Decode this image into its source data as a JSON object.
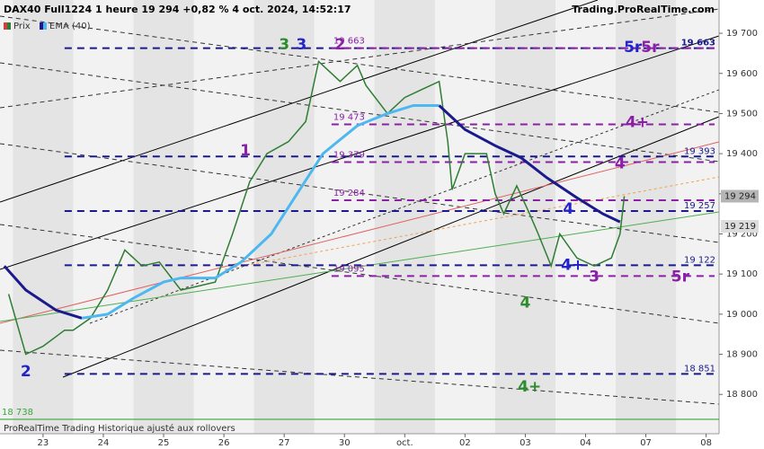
{
  "header": {
    "brand": "Trading.ProRealTime.com"
  },
  "footer": "ProRealTime Trading Historique ajusté aux rollovers",
  "chart_data": {
    "type": "line",
    "title": "DAX40 Full1224 1 heure 19 294 +0,82 % 4 oct. 2024, 14:52:17",
    "series": [
      {
        "name": "Prix",
        "color": "#2e7d32",
        "x": [
          2,
          6,
          10,
          15,
          17,
          21,
          25,
          29,
          33,
          37,
          42,
          46,
          50,
          54,
          58,
          62,
          67,
          71,
          74,
          77,
          79,
          83,
          85,
          90,
          94,
          98,
          102,
          104,
          105,
          108,
          113,
          115,
          117,
          120,
          123,
          125,
          128,
          130,
          134,
          138,
          142,
          144,
          145
        ],
        "values": [
          19050,
          18900,
          18920,
          18960,
          18960,
          18990,
          19060,
          19160,
          19120,
          19130,
          19060,
          19070,
          19080,
          19200,
          19330,
          19400,
          19430,
          19480,
          19630,
          19600,
          19580,
          19620,
          19570,
          19500,
          19540,
          19560,
          19580,
          19430,
          19310,
          19400,
          19400,
          19300,
          19250,
          19320,
          19250,
          19200,
          19120,
          19200,
          19140,
          19120,
          19140,
          19200,
          19294
        ]
      },
      {
        "name": "EMA (40)",
        "color": "#4db8f0",
        "falling_color": "#1a1a8c",
        "x": [
          1,
          6,
          13,
          19,
          25,
          31,
          38,
          42,
          50,
          56,
          63,
          69,
          75,
          83,
          90,
          96,
          102,
          108,
          115,
          121,
          127,
          134,
          140,
          144
        ],
        "values": [
          19120,
          19060,
          19010,
          18990,
          19000,
          19040,
          19080,
          19090,
          19090,
          19130,
          19200,
          19300,
          19400,
          19470,
          19500,
          19520,
          19520,
          19460,
          19420,
          19390,
          19340,
          19290,
          19250,
          19230
        ]
      }
    ],
    "xlim": [
      0,
      167
    ],
    "xticks": [
      {
        "value": 10,
        "label": "23"
      },
      {
        "value": 24,
        "label": "24"
      },
      {
        "value": 38,
        "label": "25"
      },
      {
        "value": 52,
        "label": "26"
      },
      {
        "value": 66,
        "label": "27"
      },
      {
        "value": 80,
        "label": "30"
      },
      {
        "value": 94,
        "label": "oct."
      },
      {
        "value": 108,
        "label": "02"
      },
      {
        "value": 122,
        "label": "03"
      },
      {
        "value": 136,
        "label": "04"
      },
      {
        "value": 150,
        "label": "07"
      },
      {
        "value": 164,
        "label": "08"
      }
    ],
    "ylim": [
      18702,
      19783
    ],
    "yticks": [
      {
        "value": 18800,
        "label": "18 800"
      },
      {
        "value": 18900,
        "label": "18 900"
      },
      {
        "value": 19000,
        "label": "19 000"
      },
      {
        "value": 19100,
        "label": "19 100"
      },
      {
        "value": 19200,
        "label": "19 200"
      },
      {
        "value": 19300,
        "label": "19 300"
      },
      {
        "value": 19400,
        "label": "19 400"
      },
      {
        "value": 19500,
        "label": "19 500"
      },
      {
        "value": 19600,
        "label": "19 600"
      },
      {
        "value": 19700,
        "label": "19 700"
      }
    ],
    "levels": [
      {
        "value": 19663,
        "label": "19 663",
        "color": "#1a1a8c",
        "start": 15,
        "label_side": "right"
      },
      {
        "value": 19393,
        "label": "19 393",
        "color": "#1a1a8c",
        "start": 15,
        "label_side": "right"
      },
      {
        "value": 19257,
        "label": "19 257",
        "color": "#1a1a8c",
        "start": 15,
        "label_side": "right"
      },
      {
        "value": 19122,
        "label": "19 122",
        "color": "#1a1a8c",
        "start": 15,
        "label_side": "right"
      },
      {
        "value": 18851,
        "label": "18 851",
        "color": "#1a1a8c",
        "start": 15,
        "label_side": "right"
      },
      {
        "value": 19663,
        "label": "19 663",
        "color": "#8a1fa8",
        "start": 77,
        "label_side": "left"
      },
      {
        "value": 19473,
        "label": "19 473",
        "color": "#8a1fa8",
        "start": 77,
        "label_side": "left"
      },
      {
        "value": 19379,
        "label": "19 379",
        "color": "#8a1fa8",
        "start": 77,
        "label_side": "left"
      },
      {
        "value": 19284,
        "label": "19 284",
        "color": "#8a1fa8",
        "start": 77,
        "label_side": "left"
      },
      {
        "value": 19095,
        "label": "19 095",
        "color": "#8a1fa8",
        "start": 77,
        "label_side": "left"
      },
      {
        "value": 18738,
        "label": "18 738",
        "color": "#3aa53a",
        "start": 0,
        "label_side": "left",
        "style": "solid"
      }
    ],
    "price_tags": [
      {
        "value": 19294,
        "label": "19 294",
        "color": "#b5b5b5"
      },
      {
        "value": 19219,
        "label": "19 219",
        "color": "#dcdcdc"
      }
    ],
    "annotations": [
      {
        "text": "3",
        "x": 66,
        "y": 19671,
        "color": "#2e8b2e"
      },
      {
        "text": "3",
        "x": 70,
        "y": 19671,
        "color": "#2323c8"
      },
      {
        "text": "2",
        "x": 79,
        "y": 19671,
        "color": "#8a1fa8"
      },
      {
        "text": "1",
        "x": 57,
        "y": 19407,
        "color": "#8a1fa8"
      },
      {
        "text": "2",
        "x": 6,
        "y": 18856,
        "color": "#2323c8"
      },
      {
        "text": "4",
        "x": 132,
        "y": 19261,
        "color": "#2323c8"
      },
      {
        "text": "4+",
        "x": 133,
        "y": 19122,
        "color": "#2323c8"
      },
      {
        "text": "3",
        "x": 138,
        "y": 19093,
        "color": "#8a1fa8"
      },
      {
        "text": "5r",
        "x": 158,
        "y": 19093,
        "color": "#8a1fa8"
      },
      {
        "text": "4",
        "x": 122,
        "y": 19028,
        "color": "#2e8b2e"
      },
      {
        "text": "4+",
        "x": 123,
        "y": 18818,
        "color": "#2e8b2e"
      },
      {
        "text": "4",
        "x": 144,
        "y": 19375,
        "color": "#8a1fa8"
      },
      {
        "text": "4+",
        "x": 148,
        "y": 19478,
        "color": "#8a1fa8"
      },
      {
        "text": "5r",
        "x": 147,
        "y": 19664,
        "color": "#2323c8"
      },
      {
        "text": "5r",
        "x": 151,
        "y": 19664,
        "color": "#8a1fa8"
      }
    ]
  }
}
